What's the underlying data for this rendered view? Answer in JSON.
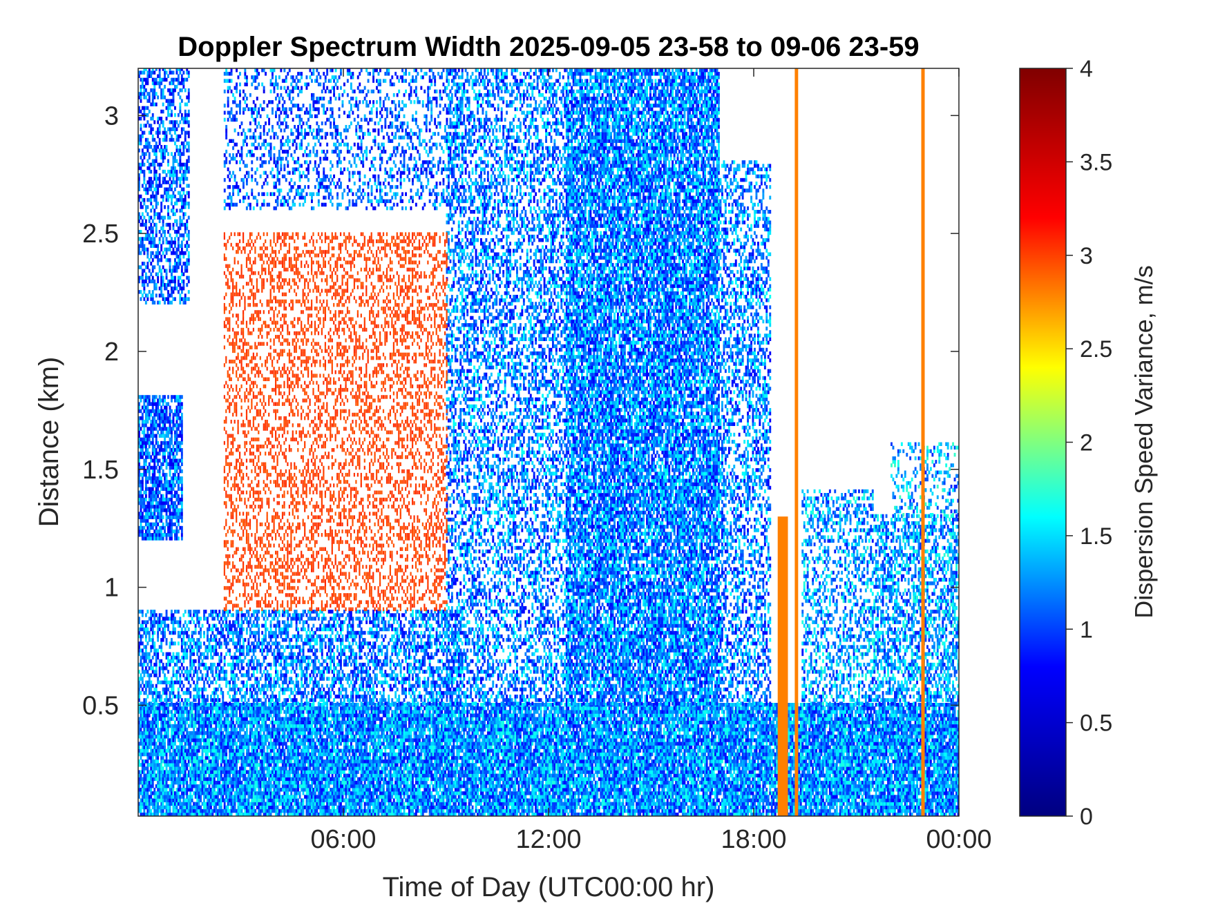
{
  "chart_data": {
    "type": "heatmap",
    "title": "Doppler Spectrum Width 2025-09-05 23-58 to 09-06 23-59",
    "xlabel": "Time of Day (UTC00:00 hr)",
    "ylabel": "Distance (km)",
    "colorbar_label": "Dispersion Speed Variance, m/s",
    "xlim": [
      0,
      24
    ],
    "ylim": [
      0.03,
      3.2
    ],
    "x_ticks": [
      {
        "value": 6,
        "label": "06:00"
      },
      {
        "value": 12,
        "label": "12:00"
      },
      {
        "value": 18,
        "label": "18:00"
      },
      {
        "value": 24,
        "label": "00:00"
      }
    ],
    "y_ticks": [
      {
        "value": 0.5,
        "label": "0.5"
      },
      {
        "value": 1,
        "label": "1"
      },
      {
        "value": 1.5,
        "label": "1.5"
      },
      {
        "value": 2,
        "label": "2"
      },
      {
        "value": 2.5,
        "label": "2.5"
      },
      {
        "value": 3,
        "label": "3"
      }
    ],
    "colorbar_ticks": [
      {
        "value": 0,
        "label": "0"
      },
      {
        "value": 0.5,
        "label": "0.5"
      },
      {
        "value": 1,
        "label": "1"
      },
      {
        "value": 1.5,
        "label": "1.5"
      },
      {
        "value": 2,
        "label": "2"
      },
      {
        "value": 2.5,
        "label": "2.5"
      },
      {
        "value": 3,
        "label": "3"
      },
      {
        "value": 3.5,
        "label": "3.5"
      },
      {
        "value": 4,
        "label": "4"
      }
    ],
    "clim": [
      0,
      4
    ],
    "colormap": "jet",
    "colormap_stops": [
      "#000080",
      "#0000ff",
      "#00ffff",
      "#ffff00",
      "#ff0000",
      "#800000"
    ],
    "regions": [
      {
        "kind": "field",
        "t0": 0,
        "t1": 24,
        "h0": 0.03,
        "h1": 0.5,
        "v": 1.25,
        "density": 0.9
      },
      {
        "kind": "field",
        "t0": 0,
        "t1": 9.5,
        "h0": 0.5,
        "h1": 0.9,
        "v": 1.2,
        "density": 0.55
      },
      {
        "kind": "field",
        "t0": 0,
        "t1": 1.3,
        "h0": 1.2,
        "h1": 1.8,
        "v": 1.1,
        "density": 0.75
      },
      {
        "kind": "field",
        "t0": 0,
        "t1": 1.5,
        "h0": 2.2,
        "h1": 3.2,
        "v": 1.1,
        "density": 0.5
      },
      {
        "kind": "field",
        "t0": 2.5,
        "t1": 9.5,
        "h0": 2.6,
        "h1": 3.2,
        "v": 1.1,
        "density": 0.3
      },
      {
        "kind": "field",
        "t0": 9,
        "t1": 12.5,
        "h0": 0.5,
        "h1": 3.2,
        "v": 1.2,
        "density": 0.45
      },
      {
        "kind": "field",
        "t0": 12.5,
        "t1": 17,
        "h0": 0.5,
        "h1": 3.2,
        "v": 1.2,
        "density": 0.8
      },
      {
        "kind": "field",
        "t0": 17,
        "t1": 18.5,
        "h0": 0.5,
        "h1": 2.8,
        "v": 1.2,
        "density": 0.45
      },
      {
        "kind": "field",
        "t0": 19.4,
        "t1": 21.5,
        "h0": 0.5,
        "h1": 1.4,
        "v": 1.3,
        "density": 0.4
      },
      {
        "kind": "field",
        "t0": 21.5,
        "t1": 24,
        "h0": 0.5,
        "h1": 1.3,
        "v": 1.3,
        "density": 0.55
      },
      {
        "kind": "field",
        "t0": 22,
        "t1": 24,
        "h0": 1.3,
        "h1": 1.6,
        "v": 1.35,
        "density": 0.25
      },
      {
        "kind": "speckle",
        "t0": 2.5,
        "t1": 9,
        "h0": 0.9,
        "h1": 2.5,
        "v": 3.0,
        "density": 0.35
      },
      {
        "kind": "stripe",
        "t0": 18.7,
        "t1": 19.0,
        "h0": 0.03,
        "h1": 1.3,
        "v": 2.8,
        "density": 1.0
      },
      {
        "kind": "stripe",
        "t0": 19.2,
        "t1": 19.3,
        "h0": 0.03,
        "h1": 3.2,
        "v": 2.8,
        "density": 1.0
      },
      {
        "kind": "stripe",
        "t0": 22.9,
        "t1": 23.0,
        "h0": 0.03,
        "h1": 3.2,
        "v": 2.8,
        "density": 1.0
      }
    ]
  }
}
